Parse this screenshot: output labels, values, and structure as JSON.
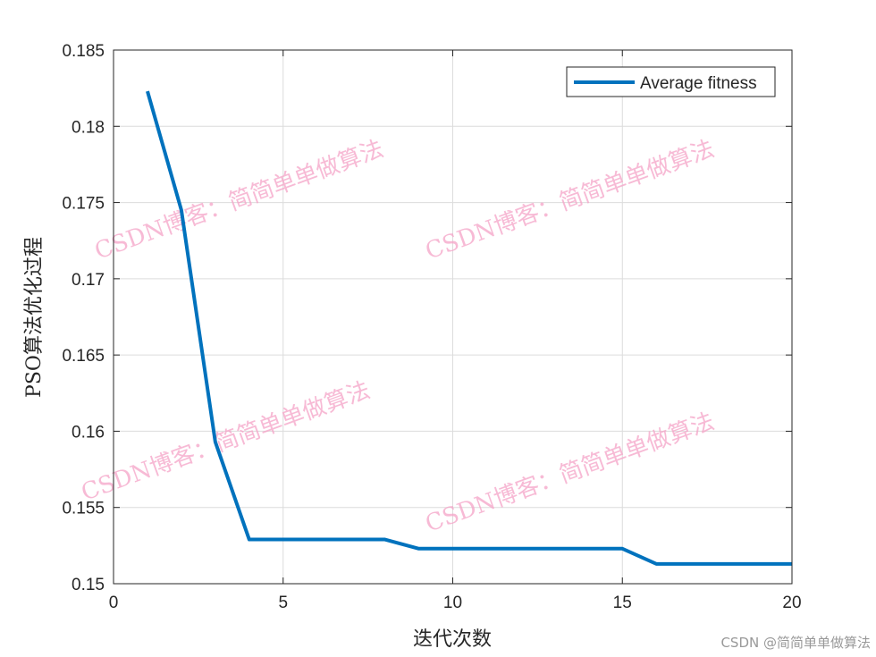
{
  "chart_data": {
    "type": "line",
    "title": "",
    "xlabel": "迭代次数",
    "ylabel": "PSO算法优化过程",
    "xlim": [
      0,
      20
    ],
    "ylim": [
      0.15,
      0.185
    ],
    "xticks": [
      0,
      5,
      10,
      15,
      20
    ],
    "yticks": [
      0.15,
      0.155,
      0.16,
      0.165,
      0.17,
      0.175,
      0.18,
      0.185
    ],
    "xtick_labels": [
      "0",
      "5",
      "10",
      "15",
      "20"
    ],
    "ytick_labels": [
      "0.15",
      "0.155",
      "0.16",
      "0.165",
      "0.17",
      "0.175",
      "0.18",
      "0.185"
    ],
    "grid": true,
    "legend_position": "top-right",
    "series": [
      {
        "name": "Average fitness",
        "color": "#0072BD",
        "x": [
          1,
          2,
          3,
          4,
          5,
          6,
          7,
          8,
          9,
          10,
          11,
          12,
          13,
          14,
          15,
          16,
          17,
          18,
          19,
          20
        ],
        "y": [
          0.1823,
          0.1745,
          0.1593,
          0.1529,
          0.1529,
          0.1529,
          0.1529,
          0.1529,
          0.1523,
          0.1523,
          0.1523,
          0.1523,
          0.1523,
          0.1523,
          0.1523,
          0.1513,
          0.1513,
          0.1513,
          0.1513,
          0.1513
        ]
      }
    ]
  },
  "watermark": "CSDN博客：简简单单做算法",
  "credit": "CSDN @简简单单做算法"
}
